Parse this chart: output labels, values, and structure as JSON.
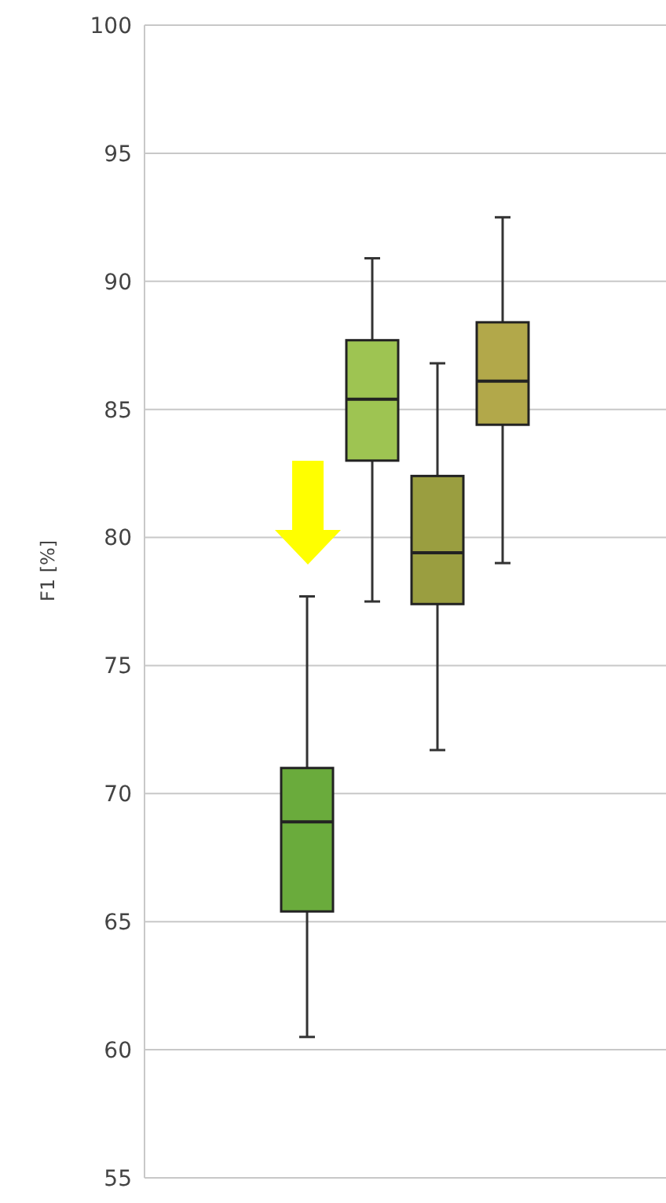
{
  "chart_data": {
    "type": "box",
    "ylabel": "F1 [%]",
    "categories": [
      null,
      null,
      null,
      null,
      null,
      null,
      null,
      null
    ],
    "boxes": [
      null,
      null,
      {
        "low": 60.5,
        "q1": 65.4,
        "median": 68.9,
        "q3": 71.0,
        "high": 77.7
      },
      {
        "low": 77.5,
        "q1": 83.0,
        "median": 85.4,
        "q3": 87.7,
        "high": 90.9
      },
      {
        "low": 71.7,
        "q1": 77.4,
        "median": 79.4,
        "q3": 82.4,
        "high": 86.8
      },
      {
        "low": 79.0,
        "q1": 84.4,
        "median": 86.1,
        "q3": 88.4,
        "high": 92.5
      },
      null,
      null
    ],
    "colors": [
      null,
      null,
      "#6aab3c",
      "#9ec452",
      "#9a9e40",
      "#b2a84a",
      null,
      null
    ],
    "ylim": [
      55,
      100
    ],
    "yticks": [
      55,
      60,
      65,
      70,
      75,
      80,
      85,
      90,
      95,
      100
    ],
    "grid": "y"
  }
}
